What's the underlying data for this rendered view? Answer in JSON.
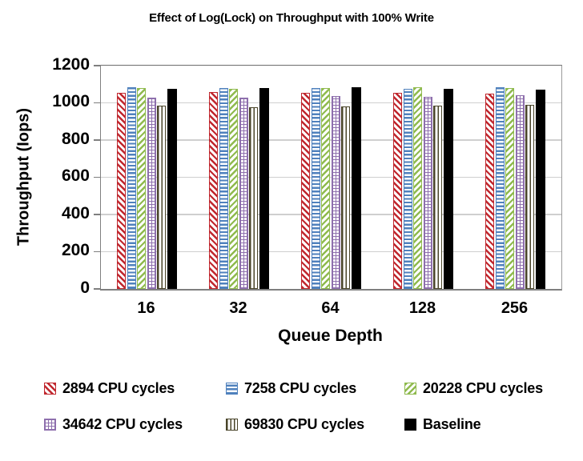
{
  "chart_data": {
    "type": "bar",
    "title": "Effect of Log(Lock) on Throughput with 100% Write",
    "xlabel": "Queue Depth",
    "ylabel": "Throughput (Iops)",
    "ylim": [
      0,
      1200
    ],
    "ytick_interval": 200,
    "yticks": [
      "1200",
      "1000",
      "800",
      "600",
      "400",
      "200",
      "0"
    ],
    "categories": [
      "16",
      "32",
      "64",
      "128",
      "256"
    ],
    "grid": true,
    "legend_position": "bottom",
    "series": [
      {
        "name": "2894 CPU cycles",
        "pattern": "diagonal-down",
        "color": "#c0272e",
        "values": [
          1055,
          1058,
          1052,
          1053,
          1050
        ]
      },
      {
        "name": "7258 CPU cycles",
        "pattern": "horizontal",
        "color": "#4f81bd",
        "values": [
          1085,
          1078,
          1080,
          1075,
          1083
        ]
      },
      {
        "name": "20228 CPU cycles",
        "pattern": "diagonal-up",
        "color": "#8fba4e",
        "values": [
          1078,
          1075,
          1080,
          1086,
          1078
        ]
      },
      {
        "name": "34642 CPU cycles",
        "pattern": "grid",
        "color": "#8e6fad",
        "values": [
          1030,
          1030,
          1035,
          1033,
          1040
        ]
      },
      {
        "name": "69830 CPU cycles",
        "pattern": "vertical",
        "color": "#494429",
        "values": [
          985,
          978,
          982,
          984,
          990
        ]
      },
      {
        "name": "Baseline",
        "pattern": "solid",
        "color": "#000000",
        "values": [
          1075,
          1078,
          1082,
          1076,
          1070
        ]
      }
    ]
  }
}
